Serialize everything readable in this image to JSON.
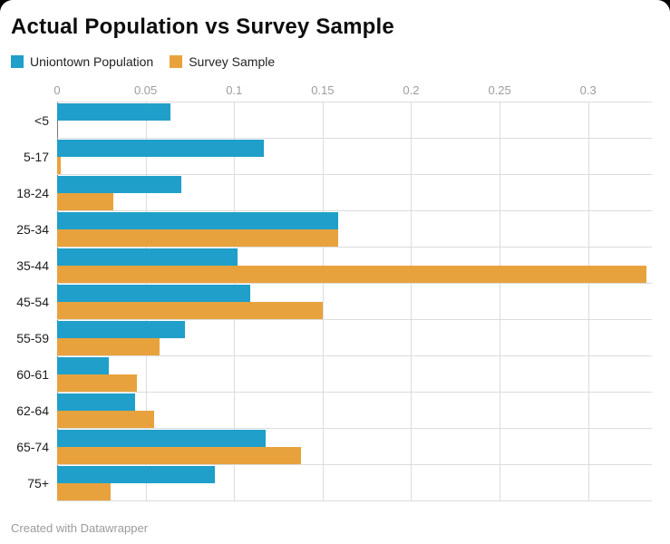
{
  "page": {
    "title": "Actual Population vs Survey Sample",
    "footer": "Created with Datawrapper"
  },
  "legend": {
    "items": [
      {
        "label": "Uniontown Population",
        "color": "#1f9fc9"
      },
      {
        "label": "Survey Sample",
        "color": "#e8a23d"
      }
    ]
  },
  "chart_data": {
    "type": "bar",
    "orientation": "horizontal",
    "title": "Actual Population vs Survey Sample",
    "categories": [
      "<5",
      "5-17",
      "18-24",
      "25-34",
      "35-44",
      "45-54",
      "55-59",
      "60-61",
      "62-64",
      "65-74",
      "75+"
    ],
    "series": [
      {
        "name": "Uniontown Population",
        "color": "#1f9fc9",
        "values": [
          0.064,
          0.117,
          0.07,
          0.159,
          0.102,
          0.109,
          0.072,
          0.029,
          0.044,
          0.118,
          0.089
        ]
      },
      {
        "name": "Survey Sample",
        "color": "#e8a23d",
        "values": [
          0,
          0.002,
          0.032,
          0.159,
          0.333,
          0.15,
          0.058,
          0.045,
          0.055,
          0.138,
          0.03
        ]
      }
    ],
    "x_ticks": [
      {
        "value": 0,
        "label": "0"
      },
      {
        "value": 0.05,
        "label": "0.05"
      },
      {
        "value": 0.1,
        "label": "0.1"
      },
      {
        "value": 0.15,
        "label": "0.15"
      },
      {
        "value": 0.2,
        "label": "0.2"
      },
      {
        "value": 0.25,
        "label": "0.25"
      },
      {
        "value": 0.3,
        "label": "0.3"
      }
    ],
    "xlim": [
      0,
      0.336
    ],
    "grid": true,
    "legend_position": "top"
  },
  "style": {
    "grid_color": "#dcdcdc",
    "zero_axis_color": "#777777",
    "tick_text_color": "#9d9d9d",
    "category_text_color": "#1d1d1d"
  }
}
